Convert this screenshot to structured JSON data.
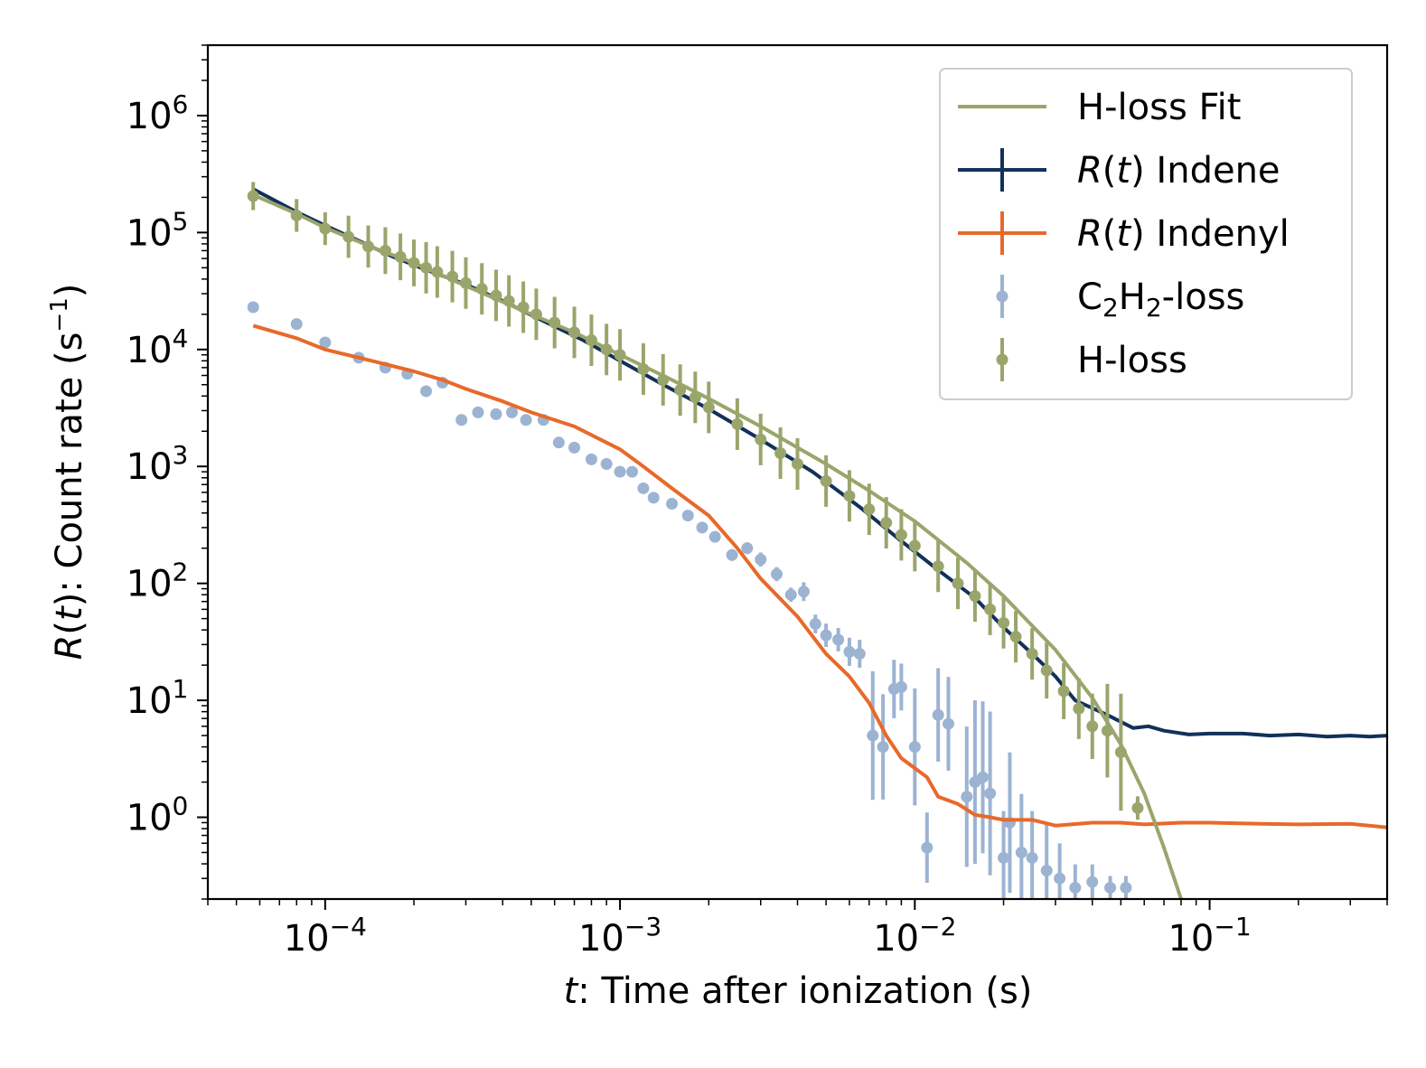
{
  "chart_data": {
    "type": "scatter",
    "title": "",
    "xlabel": {
      "var": "t",
      "text": ": Time after ionization (s)"
    },
    "ylabel": {
      "var": "R",
      "paren_open": "(",
      "arg": "t",
      "paren_close": ")",
      "text": ": Count rate (s",
      "sup": "−1",
      "close": ")"
    },
    "xscale": "log",
    "yscale": "log",
    "xlim": [
      4e-05,
      0.4
    ],
    "ylim": [
      0.2,
      4000000
    ],
    "x_ticks": [
      {
        "value": 0.0001,
        "base": "10",
        "exp": "−4"
      },
      {
        "value": 0.001,
        "base": "10",
        "exp": "−3"
      },
      {
        "value": 0.01,
        "base": "10",
        "exp": "−2"
      },
      {
        "value": 0.1,
        "base": "10",
        "exp": "−1"
      }
    ],
    "y_ticks": [
      {
        "value": 1,
        "base": "10",
        "exp": "0"
      },
      {
        "value": 10,
        "base": "10",
        "exp": "1"
      },
      {
        "value": 100,
        "base": "10",
        "exp": "2"
      },
      {
        "value": 1000,
        "base": "10",
        "exp": "3"
      },
      {
        "value": 10000,
        "base": "10",
        "exp": "4"
      },
      {
        "value": 100000,
        "base": "10",
        "exp": "5"
      },
      {
        "value": 1000000,
        "base": "10",
        "exp": "6"
      }
    ],
    "legend": {
      "position": "upper right",
      "entries": [
        {
          "key": "hfit",
          "kind": "line",
          "label": "H-loss Fit"
        },
        {
          "key": "indene",
          "kind": "errline",
          "label_var": "R",
          "label_arg": "t",
          "label": " Indene"
        },
        {
          "key": "indenyl",
          "kind": "errline",
          "label_var": "R",
          "label_arg": "t",
          "label": " Indenyl"
        },
        {
          "key": "c2h2",
          "kind": "errpoint",
          "label_parts": [
            {
              "t": "C"
            },
            {
              "t": "2",
              "sub": true
            },
            {
              "t": "H"
            },
            {
              "t": "2",
              "sub": true
            },
            {
              "t": "-loss"
            }
          ]
        },
        {
          "key": "hloss",
          "kind": "errpoint",
          "label": "H-loss"
        }
      ]
    },
    "colors": {
      "indene": "#12305a",
      "indenyl": "#e8692a",
      "c2h2": "#9cb3d2",
      "hloss": "#9aa56c",
      "hfit": "#9aa56c"
    },
    "series": [
      {
        "name": "R(t) Indene",
        "key": "indene",
        "kind": "line",
        "x": [
          5.7e-05,
          8e-05,
          0.0001,
          0.00013,
          0.00017,
          0.00022,
          0.0003,
          0.0004,
          0.00055,
          0.00075,
          0.001,
          0.0014,
          0.002,
          0.003,
          0.0045,
          0.0065,
          0.009,
          0.012,
          0.016,
          0.02,
          0.025,
          0.03,
          0.035,
          0.045,
          0.055,
          0.062,
          0.07,
          0.085,
          0.1,
          0.13,
          0.16,
          0.2,
          0.25,
          0.3,
          0.35,
          0.4
        ],
        "y": [
          235000,
          150000,
          115000,
          85000,
          62000,
          48000,
          36000,
          26000,
          17500,
          12000,
          8000,
          5000,
          3100,
          1700,
          900,
          450,
          230,
          130,
          75,
          42,
          25,
          16,
          10,
          7.5,
          5.8,
          6.0,
          5.5,
          5.1,
          5.2,
          5.2,
          5.0,
          5.1,
          4.9,
          5.0,
          4.9,
          5.0
        ]
      },
      {
        "name": "R(t) Indenyl",
        "key": "indenyl",
        "kind": "line",
        "x": [
          5.7e-05,
          8e-05,
          0.0001,
          0.00015,
          0.0002,
          0.00025,
          0.0003,
          0.0004,
          0.0005,
          0.0007,
          0.001,
          0.0012,
          0.0015,
          0.002,
          0.0025,
          0.003,
          0.004,
          0.005,
          0.006,
          0.007,
          0.008,
          0.009,
          0.011,
          0.012,
          0.014,
          0.016,
          0.018,
          0.02,
          0.025,
          0.03,
          0.04,
          0.05,
          0.06,
          0.08,
          0.1,
          0.15,
          0.2,
          0.3,
          0.4
        ],
        "y": [
          16000,
          12500,
          10000,
          7800,
          6500,
          5500,
          4600,
          3600,
          2900,
          2200,
          1400,
          1000,
          650,
          380,
          200,
          110,
          52,
          25,
          16,
          9.5,
          5.0,
          3.2,
          2.2,
          1.5,
          1.3,
          1.05,
          1.0,
          0.95,
          0.95,
          0.85,
          0.9,
          0.9,
          0.87,
          0.9,
          0.9,
          0.88,
          0.87,
          0.88,
          0.82
        ]
      },
      {
        "name": "H-loss Fit",
        "key": "hfit",
        "kind": "line",
        "x": [
          5.7e-05,
          8e-05,
          0.0001,
          0.00015,
          0.0002,
          0.0003,
          0.0005,
          0.0007,
          0.001,
          0.0015,
          0.002,
          0.003,
          0.005,
          0.007,
          0.01,
          0.015,
          0.02,
          0.03,
          0.04,
          0.05,
          0.06,
          0.07,
          0.08
        ],
        "y": [
          210000,
          145000,
          110000,
          72000,
          55000,
          35000,
          20000,
          14000,
          9000,
          5500,
          3800,
          2200,
          1050,
          620,
          340,
          150,
          78,
          27,
          10.5,
          4.2,
          1.6,
          0.55,
          0.2
        ]
      },
      {
        "name": "H-loss",
        "key": "hloss",
        "kind": "errpoint",
        "x": [
          5.7e-05,
          8e-05,
          0.0001,
          0.00012,
          0.00014,
          0.00016,
          0.00018,
          0.0002,
          0.00022,
          0.00024,
          0.00027,
          0.0003,
          0.00034,
          0.00038,
          0.00042,
          0.00047,
          0.00052,
          0.0006,
          0.0007,
          0.0008,
          0.0009,
          0.001,
          0.0012,
          0.0014,
          0.0016,
          0.0018,
          0.002,
          0.0025,
          0.003,
          0.0035,
          0.004,
          0.005,
          0.006,
          0.007,
          0.008,
          0.009,
          0.01,
          0.012,
          0.014,
          0.016,
          0.018,
          0.02,
          0.022,
          0.025,
          0.028,
          0.032,
          0.036,
          0.04,
          0.045,
          0.05,
          0.057
        ],
        "y": [
          205000,
          140000,
          108000,
          92000,
          76000,
          70000,
          62000,
          55000,
          50000,
          46000,
          42000,
          37000,
          33000,
          29000,
          26000,
          23000,
          20000,
          17000,
          14000,
          12000,
          10000,
          9000,
          6800,
          5500,
          4500,
          3900,
          3200,
          2300,
          1700,
          1300,
          1050,
          750,
          560,
          430,
          330,
          260,
          210,
          140,
          100,
          78,
          60,
          46,
          35,
          25,
          18,
          12,
          8.5,
          6.0,
          5.5,
          3.6,
          1.2
        ],
        "err": [
          0.12,
          0.14,
          0.14,
          0.18,
          0.18,
          0.2,
          0.2,
          0.2,
          0.22,
          0.22,
          0.22,
          0.22,
          0.22,
          0.22,
          0.22,
          0.22,
          0.22,
          0.22,
          0.22,
          0.22,
          0.22,
          0.22,
          0.22,
          0.22,
          0.22,
          0.22,
          0.22,
          0.22,
          0.22,
          0.22,
          0.22,
          0.22,
          0.22,
          0.22,
          0.22,
          0.22,
          0.22,
          0.22,
          0.22,
          0.22,
          0.22,
          0.22,
          0.22,
          0.22,
          0.24,
          0.24,
          0.26,
          0.28,
          0.4,
          0.5,
          0.1
        ]
      },
      {
        "name": "C2H2-loss",
        "key": "c2h2",
        "kind": "errpoint",
        "x": [
          5.7e-05,
          8e-05,
          0.0001,
          0.00013,
          0.00016,
          0.00019,
          0.00022,
          0.00025,
          0.00029,
          0.00033,
          0.00038,
          0.00043,
          0.00048,
          0.00055,
          0.00062,
          0.0007,
          0.0008,
          0.0009,
          0.001,
          0.0011,
          0.0012,
          0.0013,
          0.0015,
          0.0017,
          0.0019,
          0.0021,
          0.0024,
          0.0027,
          0.003,
          0.0034,
          0.0038,
          0.0042,
          0.0046,
          0.005,
          0.0055,
          0.006,
          0.0065,
          0.0072,
          0.0078,
          0.0085,
          0.009,
          0.01,
          0.011,
          0.012,
          0.013,
          0.015,
          0.016,
          0.017,
          0.018,
          0.02,
          0.021,
          0.023,
          0.025,
          0.028,
          0.031,
          0.035,
          0.04,
          0.046,
          0.052
        ],
        "y": [
          23000,
          16500,
          11500,
          8500,
          7000,
          6200,
          4400,
          5200,
          2500,
          2900,
          2800,
          2900,
          2500,
          2500,
          1600,
          1450,
          1150,
          1050,
          900,
          900,
          650,
          540,
          480,
          380,
          300,
          250,
          175,
          200,
          160,
          120,
          80,
          85,
          45,
          36,
          33,
          26,
          25,
          5.0,
          4.0,
          12.5,
          13.0,
          4.0,
          0.55,
          7.5,
          6.3,
          1.5,
          2.0,
          2.2,
          1.6,
          0.45,
          0.9,
          0.5,
          0.45,
          0.35,
          0.3,
          0.25,
          0.28,
          0.25,
          0.25
        ],
        "err": [
          0.04,
          0.04,
          0.04,
          0.04,
          0.04,
          0.04,
          0.04,
          0.04,
          0.04,
          0.04,
          0.04,
          0.04,
          0.04,
          0.04,
          0.04,
          0.04,
          0.04,
          0.04,
          0.04,
          0.04,
          0.04,
          0.04,
          0.04,
          0.04,
          0.04,
          0.04,
          0.05,
          0.05,
          0.06,
          0.06,
          0.06,
          0.08,
          0.08,
          0.1,
          0.1,
          0.12,
          0.12,
          0.55,
          0.45,
          0.25,
          0.2,
          0.5,
          0.3,
          0.4,
          0.4,
          0.6,
          0.7,
          0.65,
          0.7,
          0.4,
          0.6,
          0.5,
          0.4,
          0.4,
          0.3,
          0.2,
          0.15,
          0.1,
          0.1
        ]
      }
    ]
  }
}
